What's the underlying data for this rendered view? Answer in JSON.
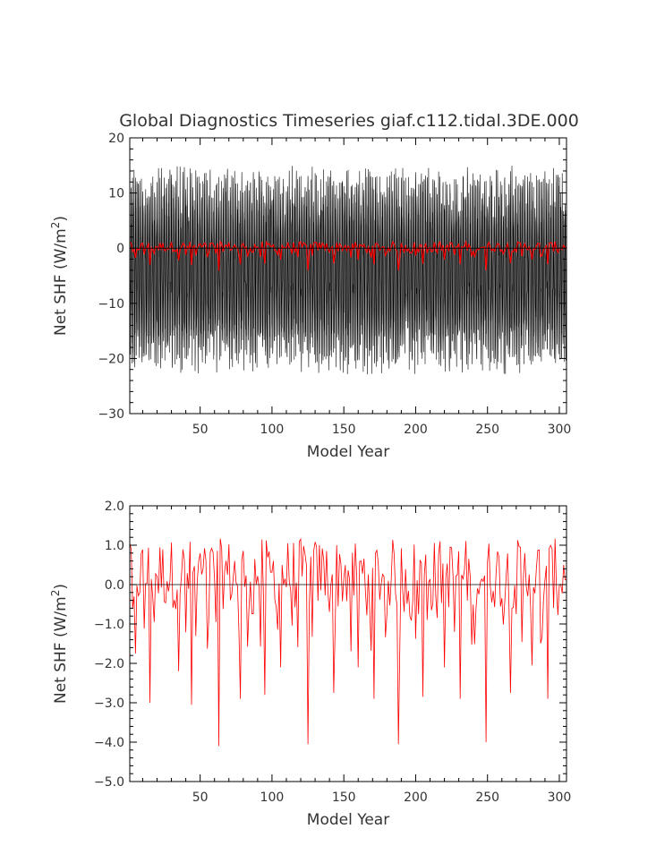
{
  "chart_data": [
    {
      "type": "line",
      "title": "Global Diagnostics Timeseries giaf.c112.tidal.3DE.000",
      "xlabel": "Model Year",
      "ylabel_main": "Net SHF  (W/m",
      "ylabel_sup": "2",
      "ylabel_tail": ")",
      "xlim": [
        1,
        305
      ],
      "ylim": [
        -30,
        20
      ],
      "x_ticks": [
        50,
        100,
        150,
        200,
        250,
        300
      ],
      "x_tick_labels": [
        "50",
        "100",
        "150",
        "200",
        "250",
        "300"
      ],
      "y_ticks": [
        -30,
        -20,
        -10,
        0,
        10,
        20
      ],
      "y_tick_labels": [
        "−30",
        "−20",
        "−10",
        "0",
        "10",
        "20"
      ],
      "zero_line": true,
      "series": [
        {
          "color": "#000000",
          "kind": "monthly",
          "values_note_only_visual": "",
          "range": [
            -24.5,
            15.5
          ]
        },
        {
          "color": "#ff0000",
          "kind": "annual",
          "range": [
            -4.1,
            1.4
          ]
        }
      ]
    },
    {
      "type": "line",
      "title": "",
      "xlabel": "Model Year",
      "ylabel_main": "Net SHF  (W/m",
      "ylabel_sup": "2",
      "ylabel_tail": ")",
      "xlim": [
        1,
        305
      ],
      "ylim": [
        -5.0,
        2.0
      ],
      "x_ticks": [
        50,
        100,
        150,
        200,
        250,
        300
      ],
      "x_tick_labels": [
        "50",
        "100",
        "150",
        "200",
        "250",
        "300"
      ],
      "y_ticks": [
        -5,
        -4,
        -3,
        -2,
        -1,
        0,
        1,
        2
      ],
      "y_tick_labels": [
        "−5.0",
        "−4.0",
        "−3.0",
        "−2.0",
        "−1.0",
        "0.0",
        "1.0",
        "2.0"
      ],
      "zero_line": true,
      "series": [
        {
          "color": "#ff0000",
          "kind": "annual",
          "range": [
            -4.1,
            1.4
          ]
        }
      ]
    }
  ]
}
